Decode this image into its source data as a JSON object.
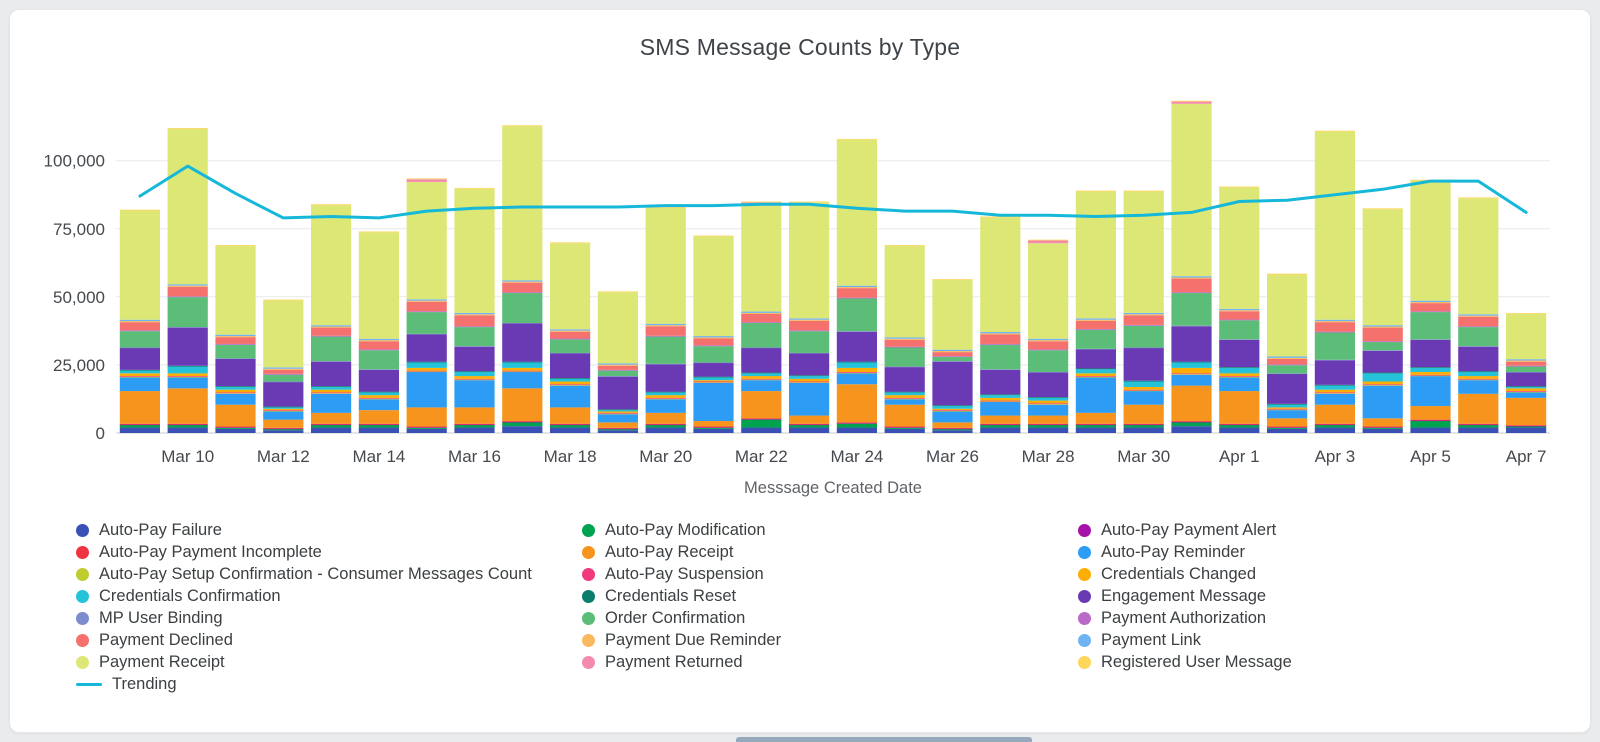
{
  "window": {
    "title": "SMS Message Counts by Type"
  },
  "chart_data": {
    "type": "bar",
    "stacked": true,
    "title": "SMS Message Counts by Type",
    "xlabel": "Messsage Created Date",
    "ylabel": "",
    "ylim": [
      0,
      130000
    ],
    "y_ticks": [
      0,
      25000,
      50000,
      75000,
      100000
    ],
    "x_tick_labels": [
      "Mar 10",
      "Mar 12",
      "Mar 14",
      "Mar 16",
      "Mar 18",
      "Mar 20",
      "Mar 22",
      "Mar 24",
      "Mar 26",
      "Mar 28",
      "Mar 30",
      "Apr 1",
      "Apr 3",
      "Apr 5",
      "Apr 7"
    ],
    "grid": "horizontal",
    "legend_position": "bottom",
    "categories": [
      "Mar 9",
      "Mar 10",
      "Mar 11",
      "Mar 12",
      "Mar 13",
      "Mar 14",
      "Mar 15",
      "Mar 16",
      "Mar 17",
      "Mar 18",
      "Mar 19",
      "Mar 20",
      "Mar 21",
      "Mar 22",
      "Mar 23",
      "Mar 24",
      "Mar 25",
      "Mar 26",
      "Mar 27",
      "Mar 28",
      "Mar 29",
      "Mar 30",
      "Mar 31",
      "Apr 1",
      "Apr 2",
      "Apr 3",
      "Apr 4",
      "Apr 5",
      "Apr 6",
      "Apr 7"
    ],
    "series": [
      {
        "name": "Auto-Pay Failure",
        "color": "#3a50b4",
        "values": [
          2000,
          2000,
          1500,
          1000,
          2000,
          2000,
          1500,
          2000,
          2500,
          2000,
          1000,
          2000,
          1500,
          2000,
          2000,
          2000,
          1500,
          1000,
          2000,
          2000,
          2000,
          2000,
          2500,
          2000,
          1500,
          2000,
          1500,
          2000,
          2000,
          2000
        ]
      },
      {
        "name": "Auto-Pay Modification",
        "color": "#00a34f",
        "values": [
          1000,
          1000,
          500,
          500,
          1000,
          1000,
          500,
          1000,
          1500,
          1000,
          500,
          1000,
          500,
          3000,
          1000,
          1500,
          500,
          500,
          1000,
          1000,
          1000,
          1000,
          1500,
          1000,
          500,
          1000,
          500,
          2500,
          1000,
          500
        ]
      },
      {
        "name": "Auto-Pay Payment Alert",
        "color": "#a513a8",
        "values": [
          100,
          100,
          100,
          100,
          100,
          100,
          100,
          100,
          100,
          100,
          100,
          100,
          100,
          100,
          100,
          100,
          100,
          100,
          100,
          100,
          100,
          100,
          100,
          100,
          100,
          100,
          100,
          100,
          100,
          100
        ]
      },
      {
        "name": "Auto-Pay Payment Incomplete",
        "color": "#ef3340",
        "values": [
          300,
          300,
          300,
          300,
          300,
          300,
          300,
          300,
          300,
          300,
          300,
          300,
          300,
          300,
          300,
          300,
          300,
          300,
          300,
          300,
          300,
          300,
          300,
          300,
          300,
          300,
          300,
          300,
          300,
          300
        ]
      },
      {
        "name": "Auto-Pay Receipt",
        "color": "#f7941e",
        "values": [
          12000,
          13000,
          8000,
          3000,
          4000,
          5000,
          7000,
          6000,
          12000,
          6000,
          2000,
          4000,
          2000,
          10000,
          3000,
          14000,
          8000,
          2000,
          3000,
          3000,
          4000,
          7000,
          13000,
          12000,
          3000,
          7000,
          3000,
          5000,
          11000,
          10000
        ]
      },
      {
        "name": "Auto-Pay Reminder",
        "color": "#2d9cf4",
        "values": [
          5000,
          4000,
          4000,
          3000,
          7000,
          4000,
          13000,
          10000,
          6000,
          8000,
          3000,
          5000,
          14000,
          4000,
          12000,
          4000,
          2000,
          4000,
          5000,
          4000,
          13000,
          5000,
          4000,
          5000,
          3000,
          4000,
          12000,
          11000,
          5000,
          2000
        ]
      },
      {
        "name": "Auto-Pay Setup Confirmation - Consumer Messages Count",
        "color": "#bfcc2f",
        "values": [
          200,
          200,
          200,
          200,
          200,
          200,
          200,
          200,
          200,
          200,
          200,
          200,
          200,
          200,
          200,
          200,
          200,
          200,
          200,
          200,
          200,
          200,
          200,
          200,
          200,
          200,
          200,
          200,
          200,
          200
        ]
      },
      {
        "name": "Auto-Pay Suspension",
        "color": "#f13a7e",
        "values": [
          300,
          300,
          300,
          300,
          300,
          300,
          300,
          300,
          300,
          300,
          300,
          300,
          300,
          300,
          300,
          300,
          300,
          300,
          300,
          300,
          300,
          300,
          300,
          300,
          300,
          300,
          300,
          300,
          300,
          300
        ]
      },
      {
        "name": "Credentials Changed",
        "color": "#fdae04",
        "values": [
          1000,
          1000,
          1000,
          500,
          1000,
          1000,
          1000,
          1000,
          1000,
          1000,
          500,
          1000,
          500,
          1000,
          1000,
          1500,
          1000,
          500,
          1000,
          1000,
          1000,
          1000,
          2000,
          1000,
          500,
          1000,
          1000,
          1000,
          1000,
          1000
        ]
      },
      {
        "name": "Credentials Confirmation",
        "color": "#25c2d9",
        "values": [
          1000,
          2500,
          1000,
          500,
          1000,
          1000,
          2000,
          1500,
          2000,
          1000,
          500,
          1000,
          1000,
          1000,
          1000,
          2000,
          1000,
          1000,
          1000,
          1000,
          1500,
          2000,
          2000,
          2000,
          1000,
          1500,
          3000,
          1500,
          1500,
          500
        ]
      },
      {
        "name": "Credentials Reset",
        "color": "#0a7d6e",
        "values": [
          300,
          300,
          300,
          300,
          300,
          300,
          300,
          300,
          300,
          300,
          300,
          300,
          300,
          300,
          300,
          300,
          300,
          300,
          300,
          300,
          300,
          300,
          300,
          300,
          300,
          300,
          300,
          300,
          300,
          300
        ]
      },
      {
        "name": "Engagement Message",
        "color": "#6a3ab4",
        "values": [
          8000,
          14000,
          10000,
          9000,
          9000,
          8000,
          10000,
          9000,
          14000,
          9000,
          12000,
          10000,
          5000,
          9000,
          8000,
          11000,
          9000,
          16000,
          9000,
          9000,
          7000,
          12000,
          13000,
          10000,
          11000,
          9000,
          8000,
          10000,
          9000,
          5000
        ]
      },
      {
        "name": "MP User Binding",
        "color": "#7d8ccc",
        "values": [
          200,
          200,
          200,
          200,
          200,
          200,
          200,
          200,
          200,
          200,
          200,
          200,
          200,
          200,
          200,
          200,
          200,
          200,
          200,
          200,
          200,
          200,
          200,
          200,
          200,
          200,
          200,
          200,
          200,
          200
        ]
      },
      {
        "name": "Order Confirmation",
        "color": "#5bbd77",
        "values": [
          6000,
          11000,
          5000,
          2500,
          9000,
          7000,
          8000,
          7000,
          11000,
          5000,
          2000,
          10000,
          6000,
          9000,
          8000,
          12000,
          7000,
          1500,
          9000,
          8000,
          7000,
          8000,
          12000,
          7000,
          3000,
          10000,
          3000,
          10000,
          7000,
          2000
        ]
      },
      {
        "name": "Payment Authorization",
        "color": "#bb69c9",
        "values": [
          300,
          300,
          300,
          300,
          300,
          300,
          300,
          300,
          300,
          300,
          300,
          300,
          300,
          300,
          300,
          300,
          300,
          300,
          300,
          300,
          300,
          300,
          300,
          300,
          300,
          300,
          300,
          300,
          300,
          300
        ]
      },
      {
        "name": "Payment Declined",
        "color": "#f4716e",
        "values": [
          3000,
          3500,
          2500,
          1500,
          3000,
          3000,
          3500,
          4000,
          3500,
          2500,
          1500,
          3500,
          2500,
          3000,
          3500,
          3500,
          2500,
          1500,
          3500,
          3000,
          3000,
          3500,
          5000,
          3000,
          2000,
          3500,
          5000,
          3000,
          3500,
          1500
        ]
      },
      {
        "name": "Payment Due Reminder",
        "color": "#fab95e",
        "values": [
          400,
          400,
          400,
          400,
          400,
          400,
          400,
          400,
          400,
          400,
          400,
          400,
          400,
          400,
          400,
          400,
          400,
          400,
          400,
          400,
          400,
          400,
          400,
          400,
          400,
          400,
          400,
          400,
          400,
          400
        ]
      },
      {
        "name": "Payment Link",
        "color": "#6fb4f2",
        "values": [
          500,
          500,
          500,
          500,
          500,
          500,
          500,
          500,
          500,
          500,
          500,
          500,
          500,
          500,
          500,
          500,
          500,
          500,
          500,
          500,
          500,
          500,
          500,
          500,
          500,
          500,
          500,
          500,
          500,
          500
        ]
      },
      {
        "name": "Payment Receipt",
        "color": "#dce775",
        "values": [
          40100,
          57100,
          32600,
          24600,
          44100,
          39100,
          43100,
          45600,
          56600,
          31600,
          26100,
          42600,
          36600,
          38900,
          42600,
          53600,
          33600,
          25600,
          42100,
          35100,
          46600,
          44600,
          63300,
          44600,
          30100,
          69100,
          42600,
          44100,
          42600,
          16600
        ]
      },
      {
        "name": "Payment Returned",
        "color": "#f48bae",
        "values": [
          0,
          0,
          0,
          0,
          0,
          0,
          1000,
          0,
          0,
          0,
          0,
          0,
          0,
          1200,
          0,
          0,
          0,
          0,
          0,
          1000,
          0,
          0,
          800,
          0,
          0,
          0,
          0,
          0,
          0,
          0
        ]
      },
      {
        "name": "Registered User Message",
        "color": "#fed65b",
        "values": [
          300,
          300,
          300,
          300,
          300,
          300,
          300,
          300,
          300,
          300,
          300,
          300,
          300,
          300,
          300,
          300,
          300,
          300,
          300,
          300,
          300,
          300,
          300,
          300,
          300,
          300,
          300,
          300,
          300,
          300
        ]
      }
    ],
    "trend": {
      "name": "Trending",
      "color": "#16b8d9",
      "values": [
        87000,
        98000,
        88000,
        79000,
        79500,
        79000,
        81500,
        82500,
        83000,
        83000,
        83000,
        83500,
        83500,
        84000,
        84000,
        82500,
        81500,
        81500,
        80000,
        80000,
        79500,
        80000,
        81000,
        85000,
        85500,
        87500,
        89500,
        92500,
        92500,
        81000
      ]
    }
  }
}
